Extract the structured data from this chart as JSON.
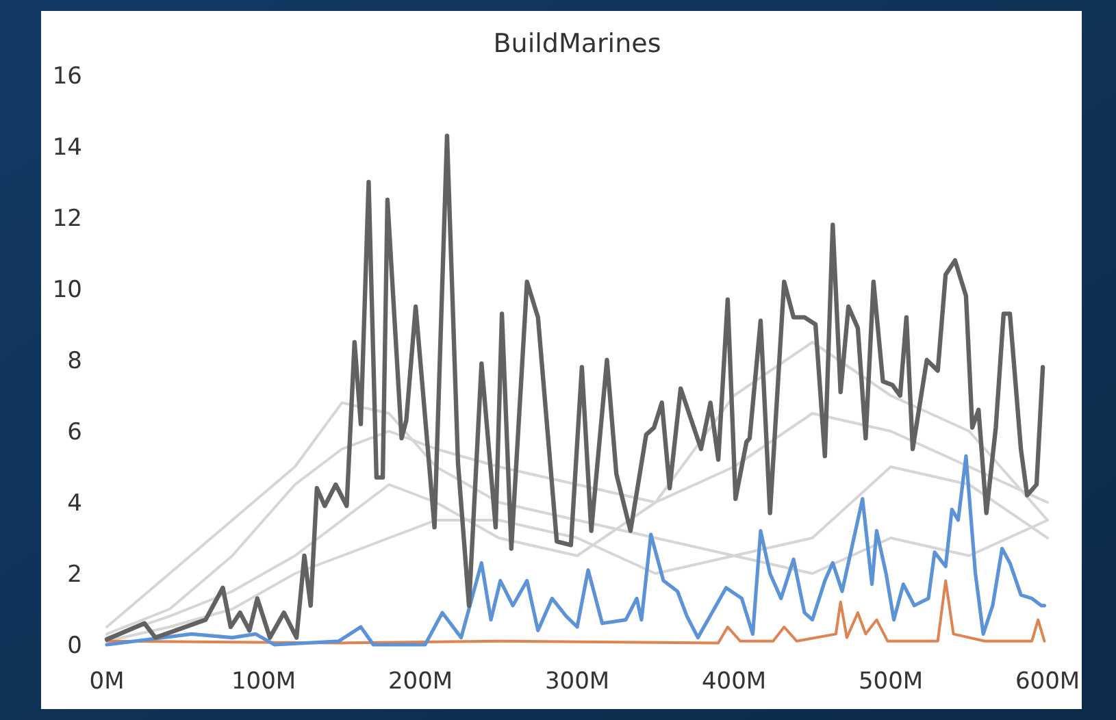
{
  "chart_data": {
    "type": "line",
    "title": "BuildMarines",
    "xlim": [
      0,
      600
    ],
    "xticks": [
      {
        "value": 0,
        "label": "0M"
      },
      {
        "value": 100,
        "label": "100M"
      },
      {
        "value": 200,
        "label": "200M"
      },
      {
        "value": 300,
        "label": "300M"
      },
      {
        "value": 400,
        "label": "400M"
      },
      {
        "value": 500,
        "label": "500M"
      },
      {
        "value": 600,
        "label": "600M"
      }
    ],
    "ylim": [
      0,
      16
    ],
    "yticks": [
      0,
      2,
      4,
      6,
      8,
      10,
      12,
      14,
      16
    ],
    "grid": false,
    "series": [
      {
        "color": "#d6d6d6",
        "x": [
          0,
          40,
          80,
          120,
          150,
          180,
          210,
          250,
          300,
          350,
          400,
          450,
          500,
          550,
          600
        ],
        "values": [
          0.5,
          2,
          3.5,
          5,
          6.8,
          6.5,
          5,
          4,
          3.5,
          3,
          2.5,
          2,
          3,
          2.5,
          3.5
        ]
      },
      {
        "color": "#d6d6d6",
        "x": [
          0,
          40,
          80,
          120,
          150,
          180,
          210,
          250,
          300,
          350,
          400,
          450,
          500,
          550,
          600
        ],
        "values": [
          0.3,
          1,
          2.5,
          4.5,
          5.5,
          6,
          5.5,
          5,
          4.5,
          4,
          5,
          6.5,
          6,
          5,
          4
        ]
      },
      {
        "color": "#d6d6d6",
        "x": [
          0,
          40,
          80,
          120,
          150,
          180,
          210,
          250,
          300,
          350,
          400,
          450,
          500,
          550,
          600
        ],
        "values": [
          0.2,
          0.8,
          1.5,
          2.5,
          3.5,
          4.5,
          4,
          3,
          2.5,
          4,
          7,
          8.5,
          7,
          6,
          3.5
        ]
      },
      {
        "color": "#d6d6d6",
        "x": [
          0,
          40,
          80,
          120,
          150,
          180,
          210,
          250,
          300,
          350,
          400,
          450,
          500,
          550,
          600
        ],
        "values": [
          0.1,
          0.5,
          1,
          2,
          2.5,
          3,
          3.5,
          3.5,
          3,
          2,
          2.5,
          3,
          5,
          4.5,
          3
        ]
      },
      {
        "color": "#dd8452",
        "x": [
          0,
          150,
          250,
          390,
          396,
          404,
          425,
          432,
          440,
          465,
          468,
          472,
          479,
          484,
          491,
          498,
          530,
          535,
          540,
          560,
          590,
          594,
          598
        ],
        "values": [
          0.1,
          0.05,
          0.1,
          0.05,
          0.5,
          0.1,
          0.1,
          0.5,
          0.1,
          0.3,
          1.2,
          0.2,
          0.9,
          0.3,
          0.7,
          0.1,
          0.1,
          1.8,
          0.3,
          0.1,
          0.1,
          0.7,
          0.1
        ]
      },
      {
        "color": "#5b93d6",
        "x": [
          0,
          54,
          80,
          95,
          107,
          148,
          162,
          170,
          203,
          214,
          226,
          239,
          245,
          251,
          259,
          268,
          275,
          284,
          293,
          300,
          307,
          316,
          331,
          338,
          341,
          347,
          355,
          364,
          370,
          377,
          386,
          395,
          405,
          412,
          417,
          423,
          430,
          438,
          445,
          450,
          458,
          463,
          469,
          475,
          482,
          488,
          491,
          497,
          502,
          508,
          515,
          524,
          528,
          535,
          539,
          543,
          548,
          554,
          559,
          565,
          571,
          576,
          583,
          590,
          596,
          598
        ],
        "values": [
          0,
          0.3,
          0.2,
          0.3,
          0,
          0.1,
          0.5,
          0,
          0,
          0.9,
          0.2,
          2.3,
          0.7,
          1.8,
          1.1,
          1.8,
          0.4,
          1.3,
          0.8,
          0.5,
          2.1,
          0.6,
          0.7,
          1.3,
          0.7,
          3.1,
          1.8,
          1.5,
          0.8,
          0.2,
          0.9,
          1.6,
          1.3,
          0.3,
          3.2,
          2.0,
          1.3,
          2.4,
          0.9,
          0.7,
          1.8,
          2.3,
          1.5,
          2.7,
          4.1,
          1.7,
          3.2,
          2.0,
          0.7,
          1.7,
          1.1,
          1.3,
          2.6,
          2.2,
          3.8,
          3.5,
          5.3,
          2.0,
          0.3,
          1.1,
          2.7,
          2.3,
          1.4,
          1.3,
          1.1,
          1.1
        ]
      },
      {
        "color": "#626262",
        "x": [
          0,
          24,
          31,
          63,
          74,
          79,
          85,
          91,
          96,
          104,
          113,
          121,
          126,
          130,
          134,
          139,
          146,
          153,
          158,
          162,
          167,
          172,
          176,
          179,
          188,
          191,
          197,
          209,
          217,
          224,
          231,
          239,
          248,
          252,
          258,
          268,
          275,
          287,
          296,
          303,
          309,
          319,
          325,
          334,
          344,
          349,
          354,
          359,
          366,
          379,
          385,
          390,
          396,
          401,
          408,
          410,
          417,
          423,
          432,
          438,
          445,
          452,
          458,
          463,
          468,
          473,
          479,
          484,
          489,
          495,
          501,
          506,
          510,
          514,
          523,
          530,
          535,
          541,
          548,
          552,
          556,
          561,
          567,
          572,
          576,
          583,
          587,
          593,
          597
        ],
        "values": [
          0.15,
          0.6,
          0.2,
          0.7,
          1.6,
          0.5,
          0.9,
          0.4,
          1.3,
          0.2,
          0.9,
          0.2,
          2.5,
          1.1,
          4.4,
          3.9,
          4.5,
          3.9,
          8.5,
          6.2,
          13.0,
          4.7,
          4.7,
          12.5,
          5.8,
          6.3,
          9.5,
          3.3,
          14.3,
          5.1,
          1.1,
          7.9,
          3.3,
          9.3,
          2.7,
          10.2,
          9.2,
          2.9,
          2.8,
          7.8,
          3.2,
          8.0,
          4.8,
          3.2,
          5.9,
          6.1,
          6.8,
          4.4,
          7.2,
          5.5,
          6.8,
          5.2,
          9.7,
          4.1,
          5.7,
          5.8,
          9.1,
          3.7,
          10.2,
          9.2,
          9.2,
          9.0,
          5.3,
          11.8,
          7.1,
          9.5,
          8.9,
          5.8,
          10.2,
          7.4,
          7.3,
          7.0,
          9.2,
          5.5,
          8.0,
          7.7,
          10.4,
          10.8,
          9.8,
          6.1,
          6.6,
          3.7,
          6.1,
          9.3,
          9.3,
          5.5,
          4.2,
          4.5,
          7.8
        ]
      }
    ]
  }
}
